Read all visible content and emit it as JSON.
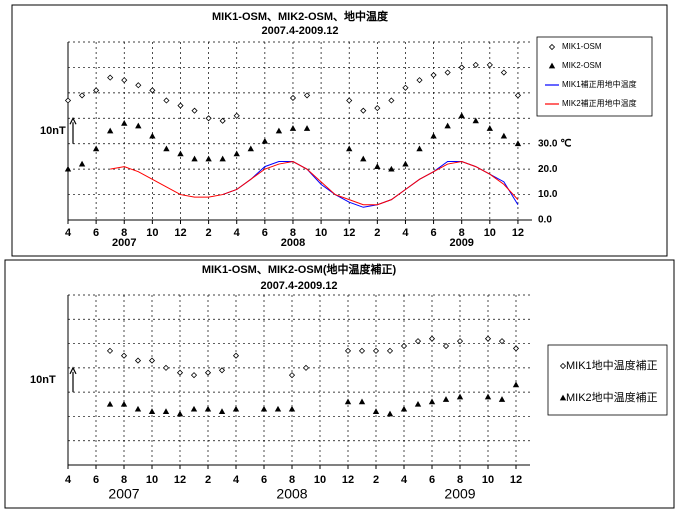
{
  "chart_data": [
    {
      "type": "line",
      "title": "MIK1-OSM、MIK2-OSM、地中温度",
      "subtitle": "2007.4-2009.12",
      "x": [
        "2007-04",
        "2007-05",
        "2007-06",
        "2007-07",
        "2007-08",
        "2007-09",
        "2007-10",
        "2007-11",
        "2007-12",
        "2008-01",
        "2008-02",
        "2008-03",
        "2008-04",
        "2008-05",
        "2008-06",
        "2008-07",
        "2008-08",
        "2008-09",
        "2008-10",
        "2008-11",
        "2008-12",
        "2009-01",
        "2009-02",
        "2009-03",
        "2009-04",
        "2009-05",
        "2009-06",
        "2009-07",
        "2009-08",
        "2009-09",
        "2009-10",
        "2009-11",
        "2009-12"
      ],
      "xlim": [
        "2007-04",
        "2010-01"
      ],
      "xticks": [
        {
          "value": "2007-04",
          "label": "4"
        },
        {
          "value": "2007-06",
          "label": "6"
        },
        {
          "value": "2007-08",
          "label": "8"
        },
        {
          "value": "2007-10",
          "label": "10"
        },
        {
          "value": "2007-12",
          "label": "12"
        },
        {
          "value": "2008-02",
          "label": "2"
        },
        {
          "value": "2008-04",
          "label": "4"
        },
        {
          "value": "2008-06",
          "label": "6"
        },
        {
          "value": "2008-08",
          "label": "8"
        },
        {
          "value": "2008-10",
          "label": "10"
        },
        {
          "value": "2008-12",
          "label": "12"
        },
        {
          "value": "2009-02",
          "label": "2"
        },
        {
          "value": "2009-04",
          "label": "4"
        },
        {
          "value": "2009-06",
          "label": "6"
        },
        {
          "value": "2009-08",
          "label": "8"
        },
        {
          "value": "2009-10",
          "label": "10"
        },
        {
          "value": "2009-12",
          "label": "12"
        }
      ],
      "year_labels": [
        {
          "value": "2007-08",
          "label": "2007"
        },
        {
          "value": "2008-08",
          "label": "2008"
        },
        {
          "value": "2009-08",
          "label": "2009"
        }
      ],
      "ylim": [
        0,
        70
      ],
      "y2lim": [
        0,
        70
      ],
      "y2ticks": [
        {
          "value": 0,
          "label": "0.0"
        },
        {
          "value": 10,
          "label": "10.0"
        },
        {
          "value": 20,
          "label": "20.0"
        },
        {
          "value": 30,
          "label": "30.0 ℃"
        }
      ],
      "scale_bar": {
        "label": "10nT",
        "value": 10
      },
      "series": [
        {
          "name": "MIK1-OSM",
          "color": "#000000",
          "marker": "diamond",
          "values": [
            47,
            49,
            51,
            56,
            55,
            53,
            51,
            47,
            45,
            43,
            40,
            39,
            41,
            null,
            null,
            null,
            48,
            49,
            null,
            null,
            47,
            43,
            44,
            47,
            52,
            55,
            57,
            58,
            60,
            61,
            61,
            58,
            49
          ]
        },
        {
          "name": "MIK2-OSM",
          "color": "#000000",
          "marker": "triangle",
          "values": [
            20,
            22,
            28,
            35,
            38,
            37,
            33,
            28,
            26,
            24,
            24,
            24,
            26,
            28,
            31,
            35,
            36,
            36,
            null,
            null,
            28,
            24,
            21,
            20,
            22,
            28,
            33,
            37,
            41,
            39,
            36,
            33,
            30
          ]
        },
        {
          "name": "MIK1補正用地中温度",
          "color": "#0000ff",
          "marker": "line",
          "axis": "y2",
          "values": [
            null,
            null,
            null,
            null,
            null,
            null,
            null,
            null,
            null,
            null,
            null,
            10,
            12,
            16,
            21,
            23,
            23,
            20,
            14,
            10,
            7,
            5,
            6,
            8,
            12,
            16,
            19,
            23,
            23,
            21,
            18,
            15,
            6
          ]
        },
        {
          "name": "MIK2補正用地中温度",
          "color": "#ff0000",
          "marker": "line",
          "axis": "y2",
          "values": [
            null,
            null,
            null,
            20,
            21,
            19,
            16,
            13,
            10,
            9,
            9,
            10,
            12,
            16,
            20,
            22,
            23,
            20,
            15,
            10,
            8,
            6,
            6,
            8,
            12,
            16,
            19,
            22,
            23,
            21,
            18,
            14,
            8
          ]
        }
      ]
    },
    {
      "type": "line",
      "title": "MIK1-OSM、MIK2-OSM(地中温度補正)",
      "subtitle": "2007.4-2009.12",
      "x": [
        "2007-04",
        "2007-05",
        "2007-06",
        "2007-07",
        "2007-08",
        "2007-09",
        "2007-10",
        "2007-11",
        "2007-12",
        "2008-01",
        "2008-02",
        "2008-03",
        "2008-04",
        "2008-05",
        "2008-06",
        "2008-07",
        "2008-08",
        "2008-09",
        "2008-10",
        "2008-11",
        "2008-12",
        "2009-01",
        "2009-02",
        "2009-03",
        "2009-04",
        "2009-05",
        "2009-06",
        "2009-07",
        "2009-08",
        "2009-09",
        "2009-10",
        "2009-11",
        "2009-12"
      ],
      "xlim": [
        "2007-04",
        "2010-01"
      ],
      "xticks": [
        {
          "value": "2007-04",
          "label": "4"
        },
        {
          "value": "2007-06",
          "label": "6"
        },
        {
          "value": "2007-08",
          "label": "8"
        },
        {
          "value": "2007-10",
          "label": "10"
        },
        {
          "value": "2007-12",
          "label": "12"
        },
        {
          "value": "2008-02",
          "label": "2"
        },
        {
          "value": "2008-04",
          "label": "4"
        },
        {
          "value": "2008-06",
          "label": "6"
        },
        {
          "value": "2008-08",
          "label": "8"
        },
        {
          "value": "2008-10",
          "label": "10"
        },
        {
          "value": "2008-12",
          "label": "12"
        },
        {
          "value": "2009-02",
          "label": "2"
        },
        {
          "value": "2009-04",
          "label": "4"
        },
        {
          "value": "2009-06",
          "label": "6"
        },
        {
          "value": "2009-08",
          "label": "8"
        },
        {
          "value": "2009-10",
          "label": "10"
        },
        {
          "value": "2009-12",
          "label": "12"
        }
      ],
      "year_labels": [
        {
          "value": "2007-08",
          "label": "2007"
        },
        {
          "value": "2008-08",
          "label": "2008"
        },
        {
          "value": "2009-08",
          "label": "2009"
        }
      ],
      "ylim": [
        0,
        70
      ],
      "scale_bar": {
        "label": "10nT",
        "value": 10
      },
      "series": [
        {
          "name": "MIK1地中温度補正",
          "color": "#000000",
          "marker": "diamond",
          "values": [
            null,
            null,
            null,
            47,
            45,
            43,
            43,
            40,
            38,
            37,
            38,
            39,
            45,
            null,
            null,
            null,
            37,
            40,
            null,
            null,
            47,
            47,
            47,
            47,
            49,
            51,
            52,
            49,
            51,
            null,
            52,
            51,
            48
          ]
        },
        {
          "name": "MIK2地中温度補正",
          "color": "#000000",
          "marker": "triangle",
          "values": [
            null,
            null,
            null,
            25,
            25,
            23,
            22,
            22,
            21,
            23,
            23,
            22,
            23,
            null,
            23,
            23,
            23,
            null,
            null,
            null,
            26,
            26,
            22,
            21,
            23,
            25,
            26,
            27,
            28,
            null,
            28,
            27,
            33
          ]
        }
      ]
    }
  ]
}
